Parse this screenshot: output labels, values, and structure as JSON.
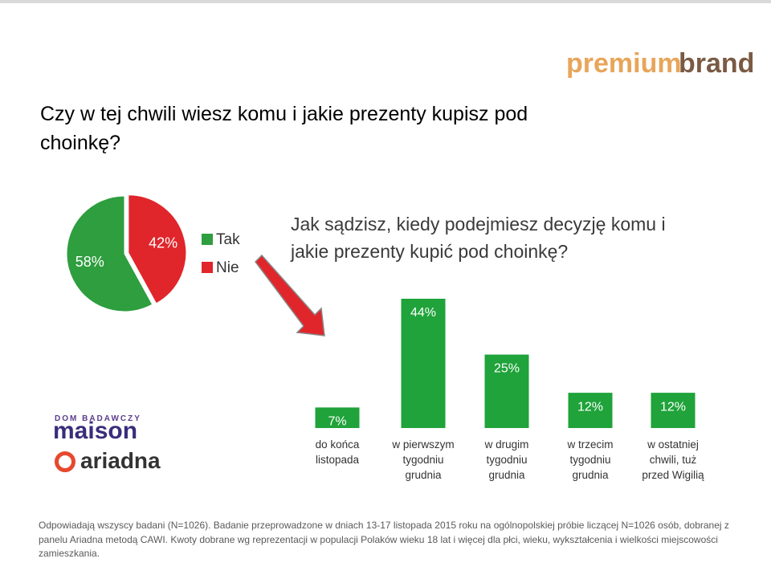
{
  "title": "Czy w tej chwili wiesz komu i jakie prezenty kupisz pod choinkę?",
  "logos": {
    "brand_left": "premium",
    "brand_right": "brand",
    "maison_top": "DOM BADAWCZY",
    "maison": "maison",
    "ariadna": "ariadna"
  },
  "footnote": "Odpowiadają wszyscy badani (N=1026). Badanie przeprowadzone w dniach 13-17 listopada 2015 roku na ogólnopolskiej próbie liczącej N=1026 osób, dobranej z panelu Ariadna metodą CAWI. Kwoty dobrane wg reprezentacji w populacji Polaków wieku 18 lat i więcej dla płci, wieku, wykształcenia i wielkości miejscowości zamieszkania.",
  "chart_data": [
    {
      "type": "pie",
      "categories": [
        "Tak",
        "Nie"
      ],
      "values": [
        58,
        42
      ],
      "value_labels": [
        "58%",
        "42%"
      ],
      "colors": [
        "#2e9e3f",
        "#e0262b"
      ]
    },
    {
      "type": "bar",
      "title": "Jak sądzisz, kiedy podejmiesz decyzję komu i jakie prezenty kupić pod choinkę?",
      "categories": [
        "do końca listopada",
        "w pierwszym tygodniu grudnia",
        "w drugim tygodniu grudnia",
        "w trzecim tygodniu grudnia",
        "w ostatniej chwili, tuż przed Wigilią"
      ],
      "values": [
        7,
        44,
        25,
        12,
        12
      ],
      "value_labels": [
        "7%",
        "44%",
        "25%",
        "12%",
        "12%"
      ],
      "color": "#1fa33a"
    }
  ]
}
